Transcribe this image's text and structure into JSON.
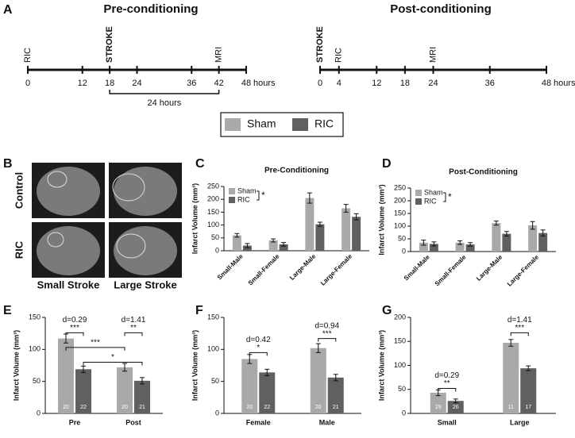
{
  "panel_labels": [
    "A",
    "B",
    "C",
    "D",
    "E",
    "F",
    "G"
  ],
  "timelines": [
    {
      "title": "Pre-conditioning",
      "xlim": [
        0,
        48
      ],
      "xticks": [
        0,
        12,
        18,
        24,
        36,
        42,
        48
      ],
      "unit": "hours",
      "events": [
        {
          "label": "RIC",
          "at": 0,
          "bold": false
        },
        {
          "label": "STROKE",
          "at": 18,
          "bold": true
        },
        {
          "label": "MRI",
          "at": 42,
          "bold": false
        }
      ],
      "span": {
        "from": 18,
        "to": 42,
        "label": "24 hours"
      }
    },
    {
      "title": "Post-conditioning",
      "xlim": [
        0,
        48
      ],
      "xticks": [
        0,
        4,
        12,
        18,
        24,
        36,
        48
      ],
      "unit": "hours",
      "events": [
        {
          "label": "STROKE",
          "at": 0,
          "bold": true
        },
        {
          "label": "RIC",
          "at": 4,
          "bold": false
        },
        {
          "label": "MRI",
          "at": 24,
          "bold": false
        }
      ]
    }
  ],
  "legend": [
    {
      "name": "Sham",
      "color": "#a9a9a9"
    },
    {
      "name": "RIC",
      "color": "#606060"
    }
  ],
  "images": {
    "rows": [
      "Control",
      "RIC"
    ],
    "columns": [
      "Small Stroke",
      "Large Stroke"
    ]
  },
  "chart_data": [
    {
      "type": "bar",
      "title": "Pre-Conditioning",
      "y_label": "Infarct Volume (mm³)",
      "categories": [
        "Small-Male",
        "Small-Female",
        "Large-Male",
        "Large-Female"
      ],
      "series": [
        {
          "name": "Sham",
          "color": "#a9a9a9",
          "values": [
            60,
            40,
            205,
            165
          ],
          "errors": [
            7,
            6,
            20,
            15
          ]
        },
        {
          "name": "RIC",
          "color": "#606060",
          "values": [
            20,
            25,
            103,
            132
          ],
          "errors": [
            8,
            7,
            8,
            12
          ]
        }
      ],
      "significance": "*",
      "ylim": [
        0,
        250
      ],
      "yticks": [
        0,
        50,
        100,
        150,
        200,
        250
      ]
    },
    {
      "type": "bar",
      "title": "Post-Conditioning",
      "y_label": "Infarct Volume (mm³)",
      "categories": [
        "Small-Male",
        "Small-Female",
        "Large-Male",
        "Large-Female"
      ],
      "series": [
        {
          "name": "Sham",
          "color": "#a9a9a9",
          "values": [
            35,
            35,
            112,
            103
          ],
          "errors": [
            10,
            7,
            8,
            15
          ]
        },
        {
          "name": "RIC",
          "color": "#606060",
          "values": [
            30,
            28,
            70,
            73
          ],
          "errors": [
            8,
            7,
            9,
            12
          ]
        }
      ],
      "significance": "*",
      "ylim": [
        0,
        250
      ],
      "yticks": [
        0,
        50,
        100,
        150,
        200,
        250
      ]
    },
    {
      "type": "bar",
      "y_label": "Infarct Volume (mm³)",
      "categories": [
        "Pre",
        "Post"
      ],
      "series": [
        {
          "color": "#a9a9a9",
          "values": [
            117,
            72
          ],
          "errors": [
            7,
            6
          ],
          "counts": [
            20,
            20
          ]
        },
        {
          "color": "#606060",
          "values": [
            69,
            51
          ],
          "errors": [
            5,
            5
          ],
          "counts": [
            22,
            21
          ]
        }
      ],
      "annotations": [
        "d=0.29",
        "***",
        "d=1.41",
        "**",
        "***",
        "*"
      ],
      "ylim": [
        0,
        150
      ],
      "yticks": [
        0,
        50,
        100,
        150
      ]
    },
    {
      "type": "bar",
      "y_label": "Infarct Volume (mm³)",
      "categories": [
        "Female",
        "Male"
      ],
      "series": [
        {
          "color": "#a9a9a9",
          "values": [
            85,
            102
          ],
          "errors": [
            7,
            7
          ],
          "counts": [
            20,
            20
          ]
        },
        {
          "color": "#606060",
          "values": [
            64,
            56
          ],
          "errors": [
            5,
            5
          ],
          "counts": [
            22,
            21
          ]
        }
      ],
      "annotations": [
        "d=0.42",
        "*",
        "d=0.94",
        "***"
      ],
      "ylim": [
        0,
        150
      ],
      "yticks": [
        0,
        50,
        100,
        150
      ]
    },
    {
      "type": "bar",
      "y_label": "Infarct Volume (mm³)",
      "categories": [
        "Small",
        "Large"
      ],
      "series": [
        {
          "color": "#a9a9a9",
          "values": [
            43,
            147
          ],
          "errors": [
            6,
            7
          ],
          "counts": [
            29,
            11
          ]
        },
        {
          "color": "#606060",
          "values": [
            26,
            94
          ],
          "errors": [
            4,
            5
          ],
          "counts": [
            26,
            17
          ]
        }
      ],
      "annotations": [
        "d=0.29",
        "**",
        "d=1.41",
        "***"
      ],
      "ylim": [
        0,
        200
      ],
      "yticks": [
        0,
        50,
        100,
        150,
        200
      ]
    }
  ]
}
